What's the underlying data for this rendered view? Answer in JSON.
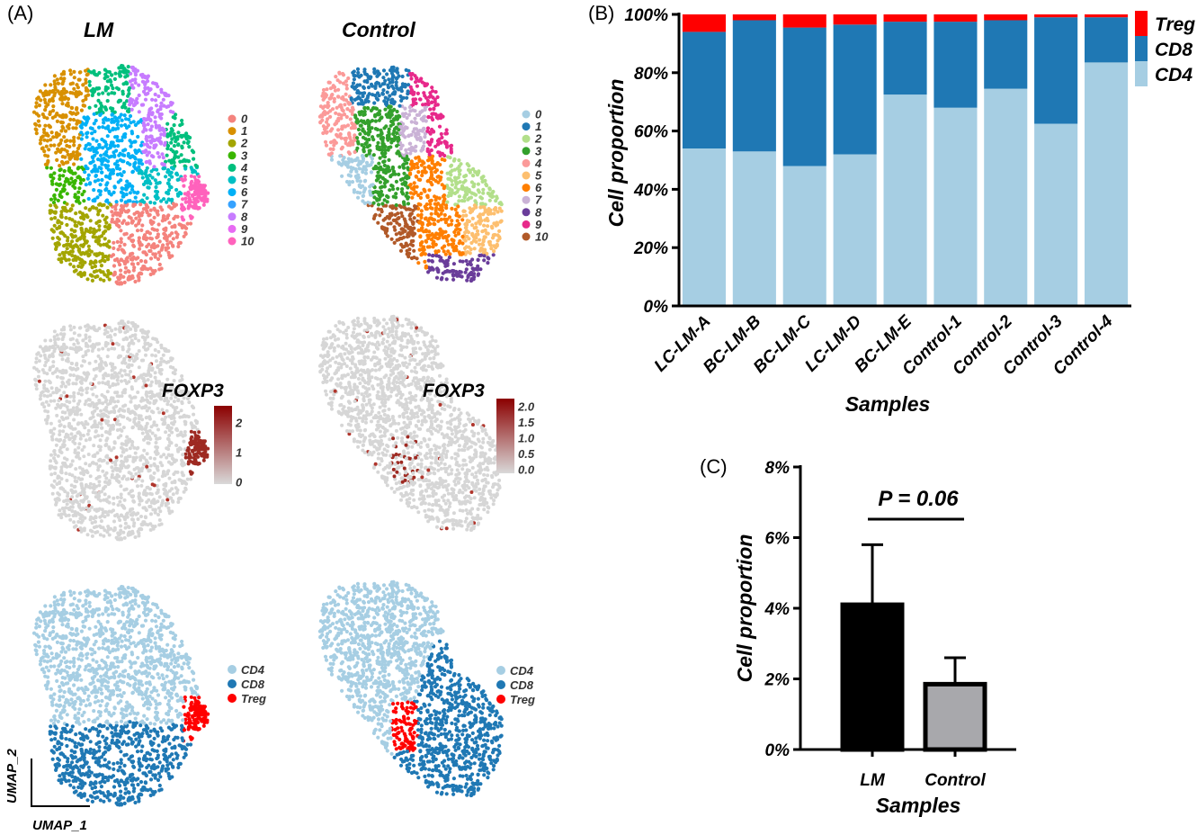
{
  "panels": {
    "a": "(A)",
    "b": "(B)",
    "c": "(C)"
  },
  "panel_a": {
    "titles": [
      "LM",
      "Control"
    ],
    "feature_label": "FOXP3",
    "lm_scale_ticks": [
      "2",
      "1",
      "0"
    ],
    "control_scale_ticks": [
      "2.0",
      "1.5",
      "1.0",
      "0.5",
      "0.0"
    ],
    "cluster_labels": [
      "0",
      "1",
      "2",
      "3",
      "4",
      "5",
      "6",
      "7",
      "8",
      "9",
      "10"
    ],
    "lm_cluster_colors": [
      "#F4837D",
      "#D89000",
      "#A3A500",
      "#39B600",
      "#00BF7D",
      "#00BFC4",
      "#00B0F6",
      "#35A2FF",
      "#C77CFF",
      "#E76BF3",
      "#FF62BC"
    ],
    "control_cluster_colors": [
      "#A6CEE3",
      "#1F78B4",
      "#B2DF8A",
      "#33A02C",
      "#FB9A99",
      "#FDBF6F",
      "#FF7F00",
      "#CAB2D6",
      "#6A3D9A",
      "#E7298A",
      "#B15928"
    ],
    "celltype_labels": [
      "CD4",
      "CD8",
      "Treg"
    ],
    "celltype_colors": {
      "CD4": "#A6CEE3",
      "CD8": "#1F78B4",
      "Treg": "#FF0000"
    },
    "umap_x": "UMAP_1",
    "umap_y": "UMAP_2"
  },
  "chart_data": [
    {
      "type": "bar",
      "stacked": true,
      "categories": [
        "LC-LM-A",
        "BC-LM-B",
        "BC-LM-C",
        "LC-LM-D",
        "BC-LM-E",
        "Control-1",
        "Control-2",
        "Control-3",
        "Control-4"
      ],
      "series": [
        {
          "name": "CD4",
          "color": "#A6CEE3",
          "values": [
            54,
            53,
            48,
            52,
            72.5,
            68,
            74.5,
            62.5,
            83.5
          ]
        },
        {
          "name": "CD8",
          "color": "#1F78B4",
          "values": [
            40,
            45,
            47.5,
            44.5,
            25,
            29.5,
            23.5,
            36.5,
            15.5
          ]
        },
        {
          "name": "Treg",
          "color": "#FF0000",
          "values": [
            6,
            2,
            4.5,
            3.5,
            2.5,
            2.5,
            2,
            1,
            1
          ]
        }
      ],
      "yticks": [
        "0%",
        "20%",
        "40%",
        "60%",
        "80%",
        "100%"
      ],
      "ylim": [
        0,
        100
      ],
      "ylabel": "Cell proportion",
      "xlabel": "Samples",
      "legend": "right"
    },
    {
      "type": "bar",
      "categories": [
        "LM",
        "Control"
      ],
      "values": [
        4.1,
        1.85
      ],
      "errors": [
        1.7,
        0.75
      ],
      "colors": [
        "#000000",
        "#A8A8AC"
      ],
      "yticks": [
        "0%",
        "2%",
        "4%",
        "6%",
        "8%"
      ],
      "ylim": [
        0,
        8
      ],
      "ylabel": "Cell proportion",
      "xlabel": "Samples",
      "annotation": "P = 0.06"
    }
  ]
}
